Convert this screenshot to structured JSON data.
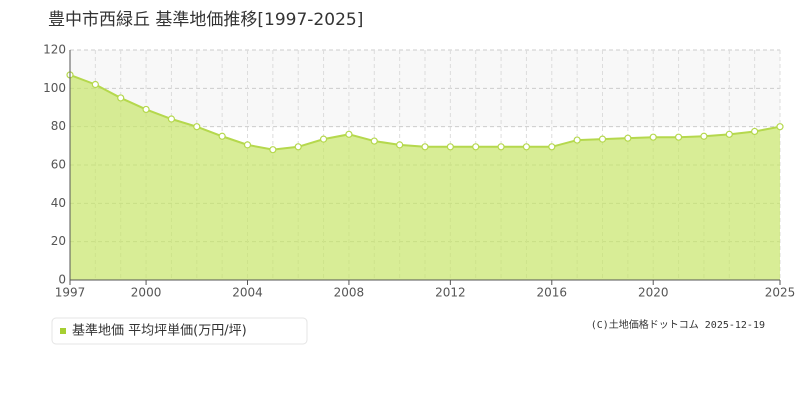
{
  "chart_data": {
    "type": "area",
    "title": "豊中市西緑丘 基準地価推移[1997-2025]",
    "x": [
      1997,
      1998,
      1999,
      2000,
      2001,
      2002,
      2003,
      2004,
      2005,
      2006,
      2007,
      2008,
      2009,
      2010,
      2011,
      2012,
      2013,
      2014,
      2015,
      2016,
      2017,
      2018,
      2019,
      2020,
      2021,
      2022,
      2023,
      2024,
      2025
    ],
    "series": [
      {
        "name": "基準地価 平均坪単価(万円/坪)",
        "color": "#c8e56a",
        "values": [
          107,
          102,
          95,
          89,
          84,
          80,
          75,
          70.5,
          68,
          69.5,
          73.5,
          76,
          72.5,
          70.5,
          69.5,
          69.5,
          69.5,
          69.5,
          69.5,
          69.5,
          73,
          73.5,
          74,
          74.5,
          74.5,
          75,
          76,
          77.5,
          80
        ]
      }
    ],
    "xlim": [
      1997,
      2025
    ],
    "xticks": [
      1997,
      2000,
      2004,
      2008,
      2012,
      2016,
      2020,
      2025
    ],
    "ylim": [
      0,
      120
    ],
    "yticks": [
      0,
      20,
      40,
      60,
      80,
      100,
      120
    ],
    "grid": true,
    "legend": "bottom-left",
    "annotation": "(C)土地価格ドットコム 2025-12-19"
  }
}
